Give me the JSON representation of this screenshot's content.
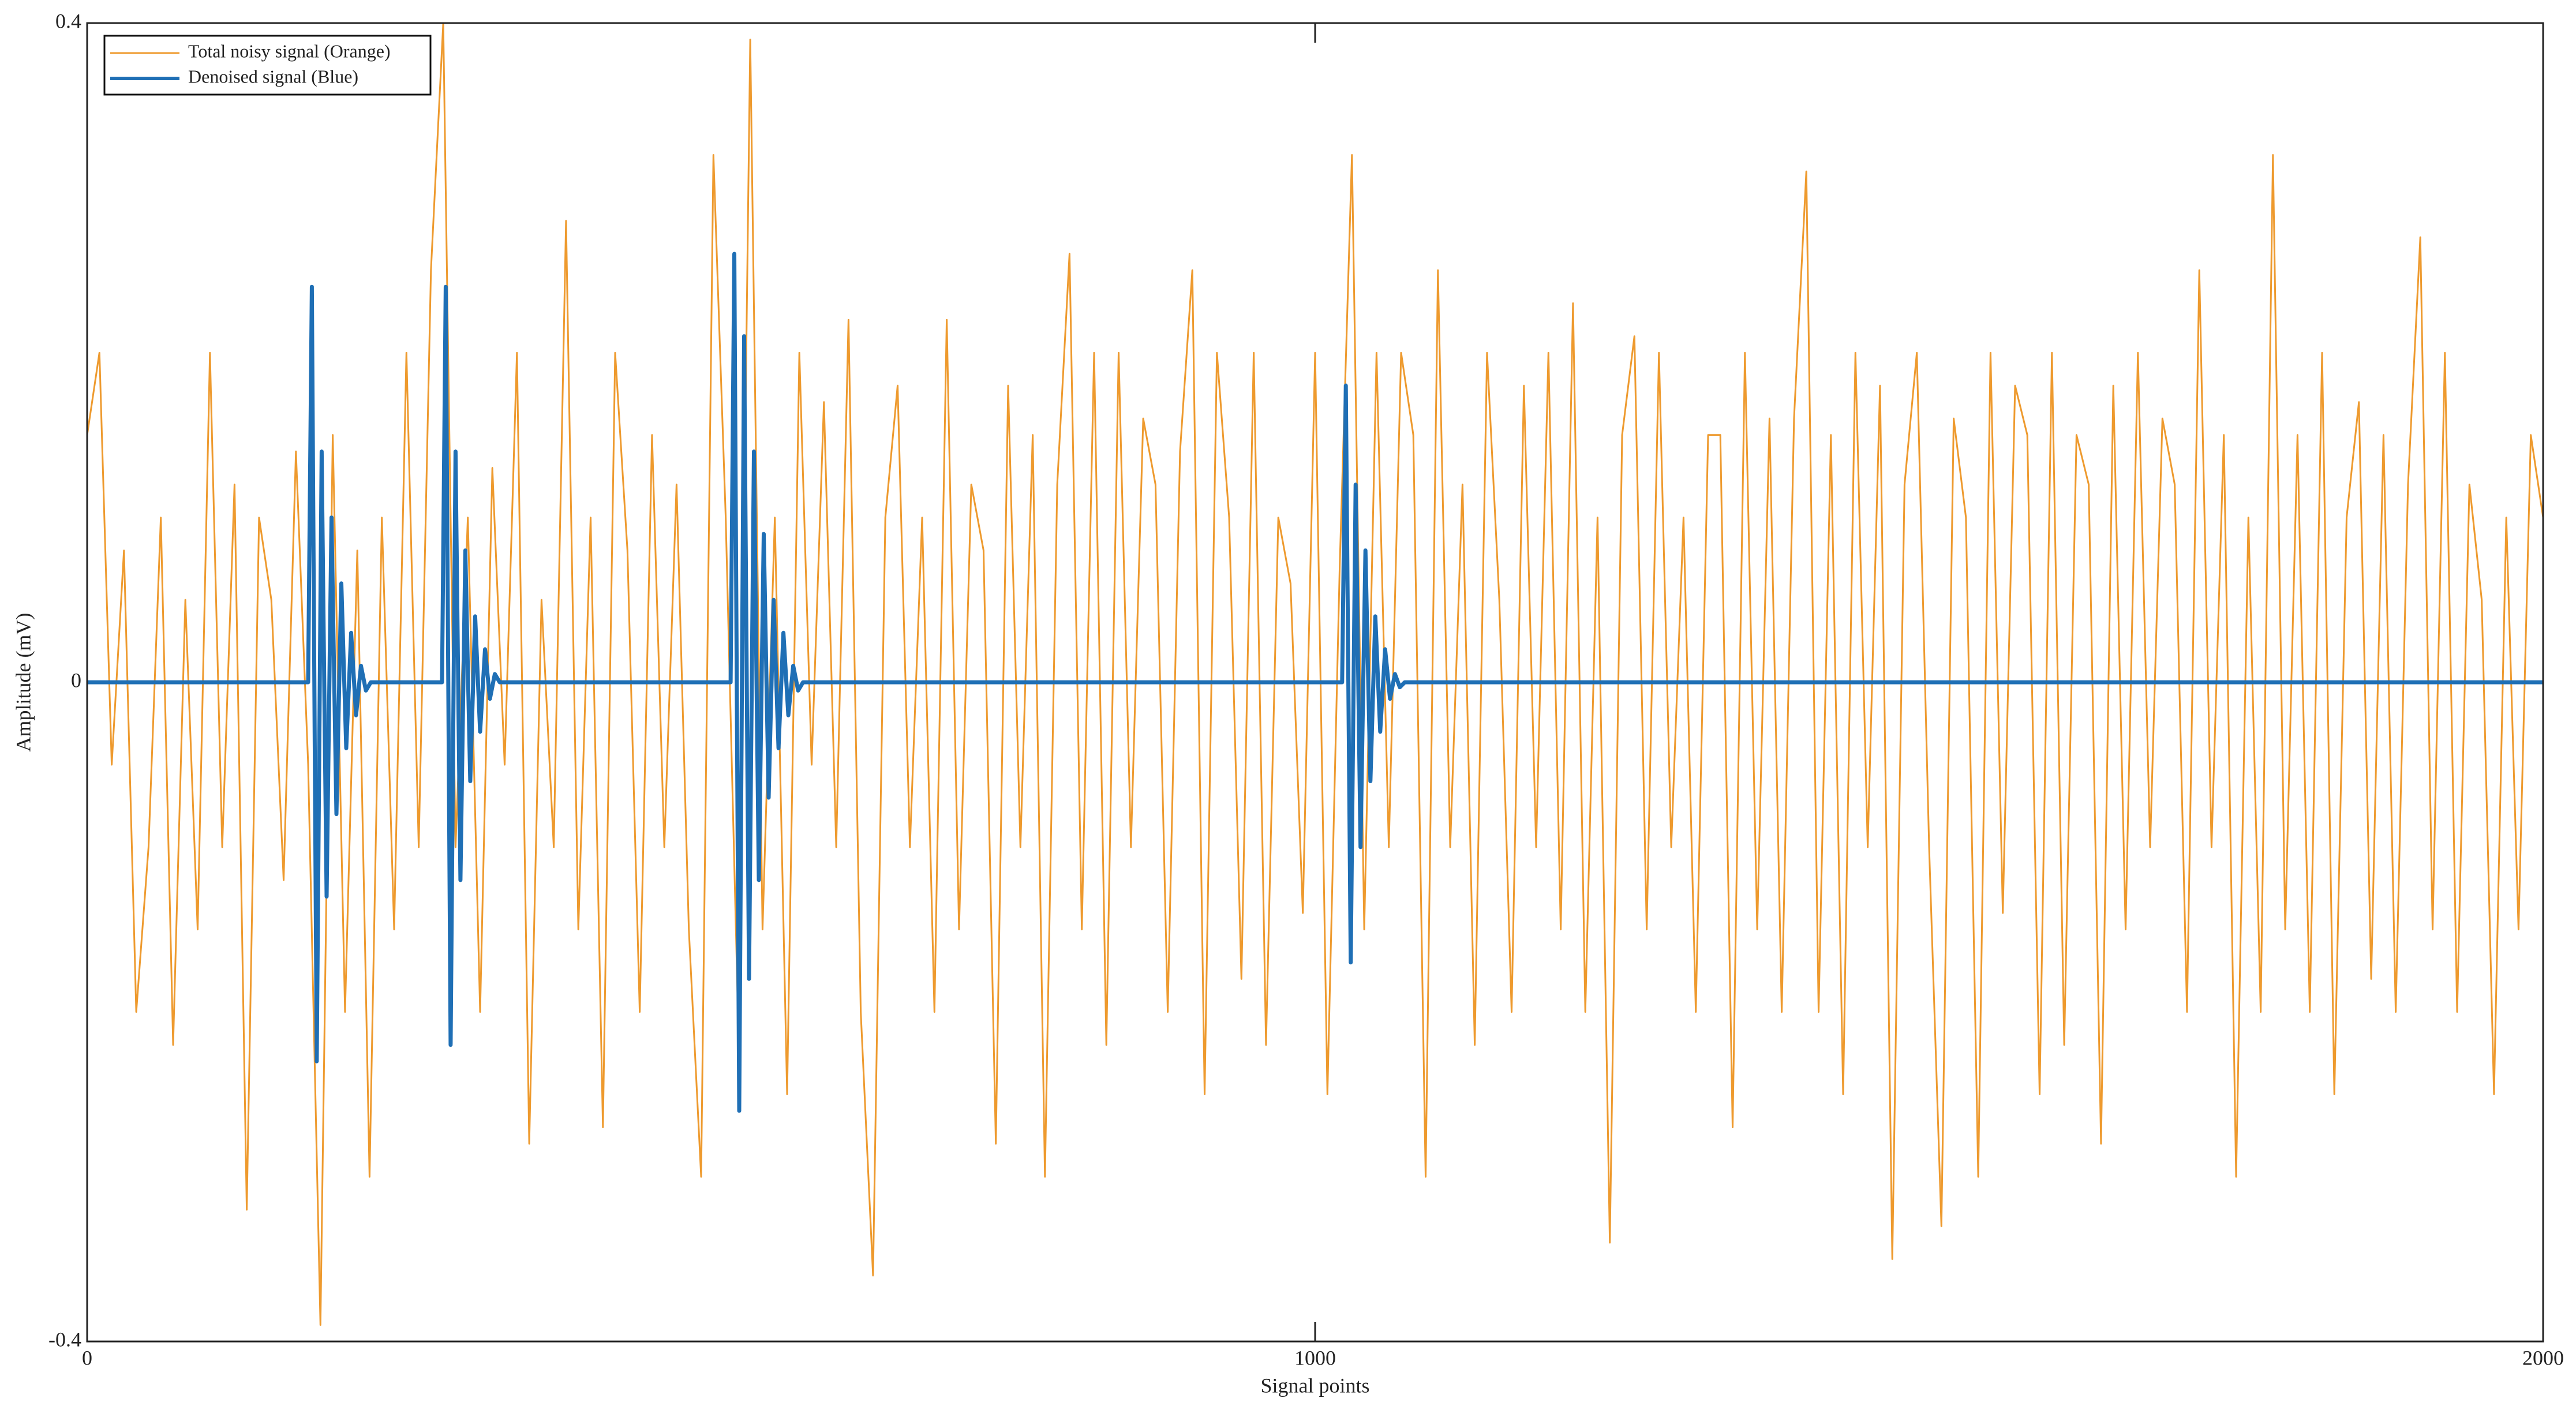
{
  "chart_data": {
    "type": "line",
    "xlabel": "Signal points",
    "ylabel": "Amplitude (mV)",
    "xlim": [
      0,
      2000
    ],
    "ylim": [
      -0.4,
      0.4
    ],
    "xticks": [
      0,
      1000,
      2000
    ],
    "yticks": [
      -0.4,
      0,
      0.4
    ],
    "legend": "upper left",
    "series": [
      {
        "name": "Total noisy signal (Orange)",
        "color": "#ee9a2e",
        "x": [
          0,
          10,
          20,
          30,
          40,
          50,
          60,
          70,
          80,
          90,
          100,
          110,
          120,
          130,
          140,
          150,
          160,
          170,
          180,
          190,
          200,
          210,
          220,
          230,
          240,
          250,
          260,
          270,
          280,
          290,
          300,
          310,
          320,
          330,
          340,
          350,
          360,
          370,
          380,
          390,
          400,
          410,
          420,
          430,
          440,
          450,
          460,
          470,
          480,
          490,
          500,
          510,
          520,
          530,
          540,
          550,
          560,
          570,
          580,
          590,
          600,
          610,
          620,
          630,
          640,
          650,
          660,
          670,
          680,
          690,
          700,
          710,
          720,
          730,
          740,
          750,
          760,
          770,
          780,
          790,
          800,
          810,
          820,
          830,
          840,
          850,
          860,
          870,
          880,
          890,
          900,
          910,
          920,
          930,
          940,
          950,
          960,
          970,
          980,
          990,
          1000,
          1010,
          1020,
          1030,
          1040,
          1050,
          1060,
          1070,
          1080,
          1090,
          1100,
          1110,
          1120,
          1130,
          1140,
          1150,
          1160,
          1170,
          1180,
          1190,
          1200,
          1210,
          1220,
          1230,
          1240,
          1250,
          1260,
          1270,
          1280,
          1290,
          1300,
          1310,
          1320,
          1330,
          1340,
          1350,
          1360,
          1370,
          1380,
          1390,
          1400,
          1410,
          1420,
          1430,
          1440,
          1450,
          1460,
          1470,
          1480,
          1490,
          1500,
          1510,
          1520,
          1530,
          1540,
          1550,
          1560,
          1570,
          1580,
          1590,
          1600,
          1610,
          1620,
          1630,
          1640,
          1650,
          1660,
          1670,
          1680,
          1690,
          1700,
          1710,
          1720,
          1730,
          1740,
          1750,
          1760,
          1770,
          1780,
          1790,
          1800,
          1810,
          1820,
          1830,
          1840,
          1850,
          1860,
          1870,
          1880,
          1890,
          1900,
          1910,
          1920,
          1930,
          1940,
          1950,
          1960,
          1970,
          1980,
          1990,
          2000
        ],
        "values": [
          0.15,
          0.2,
          -0.05,
          0.08,
          -0.2,
          -0.1,
          0.1,
          -0.22,
          0.05,
          -0.15,
          0.2,
          -0.1,
          0.12,
          -0.32,
          0.1,
          0.05,
          -0.12,
          0.14,
          -0.05,
          -0.39,
          0.15,
          -0.2,
          0.08,
          -0.3,
          0.1,
          -0.15,
          0.2,
          -0.1,
          0.25,
          0.4,
          -0.1,
          0.1,
          -0.2,
          0.13,
          -0.05,
          0.2,
          -0.28,
          0.05,
          -0.1,
          0.28,
          -0.15,
          0.1,
          -0.27,
          0.2,
          0.08,
          -0.2,
          0.15,
          -0.1,
          0.12,
          -0.15,
          -0.3,
          0.32,
          0.1,
          -0.2,
          0.39,
          -0.15,
          0.1,
          -0.25,
          0.2,
          -0.05,
          0.17,
          -0.1,
          0.22,
          -0.2,
          -0.36,
          0.1,
          0.18,
          -0.1,
          0.1,
          -0.2,
          0.22,
          -0.15,
          0.12,
          0.08,
          -0.28,
          0.18,
          -0.1,
          0.15,
          -0.3,
          0.12,
          0.26,
          -0.15,
          0.2,
          -0.22,
          0.2,
          -0.1,
          0.16,
          0.12,
          -0.2,
          0.14,
          0.25,
          -0.25,
          0.2,
          0.1,
          -0.18,
          0.2,
          -0.22,
          0.1,
          0.06,
          -0.14,
          0.2,
          -0.25,
          0.07,
          0.32,
          -0.15,
          0.2,
          -0.1,
          0.2,
          0.15,
          -0.3,
          0.25,
          -0.1,
          0.12,
          -0.22,
          0.2,
          0.05,
          -0.2,
          0.18,
          -0.1,
          0.2,
          -0.15,
          0.23,
          -0.2,
          0.1,
          -0.34,
          0.15,
          0.21,
          -0.15,
          0.2,
          -0.1,
          0.1,
          -0.2,
          0.15,
          0.15,
          -0.27,
          0.2,
          -0.15,
          0.16,
          -0.2,
          0.16,
          0.31,
          -0.2,
          0.15,
          -0.25,
          0.2,
          -0.1,
          0.18,
          -0.35,
          0.12,
          0.2,
          -0.1,
          -0.33,
          0.16,
          0.1,
          -0.3,
          0.2,
          -0.14,
          0.18,
          0.15,
          -0.25,
          0.2,
          -0.22,
          0.15,
          0.12,
          -0.28,
          0.18,
          -0.15,
          0.2,
          -0.1,
          0.16,
          0.12,
          -0.2,
          0.25,
          -0.1,
          0.15,
          -0.3,
          0.1,
          -0.2,
          0.32,
          -0.15,
          0.15,
          -0.2,
          0.2,
          -0.25,
          0.1,
          0.17,
          -0.18,
          0.15,
          -0.2,
          0.12,
          0.27,
          -0.15,
          0.2,
          -0.2,
          0.12,
          0.05,
          -0.25,
          0.1,
          -0.15,
          0.15,
          0.1
        ]
      },
      {
        "name": "Denoised signal (Blue)",
        "color": "#1f6fb5",
        "x": [
          0,
          180,
          183,
          187,
          191,
          195,
          199,
          203,
          207,
          211,
          215,
          219,
          223,
          227,
          231,
          289,
          292,
          296,
          300,
          304,
          308,
          312,
          316,
          320,
          324,
          328,
          332,
          336,
          524,
          527,
          531,
          535,
          539,
          543,
          547,
          551,
          555,
          559,
          563,
          567,
          571,
          575,
          579,
          583,
          600,
          1022,
          1025,
          1029,
          1033,
          1037,
          1041,
          1045,
          1049,
          1053,
          1057,
          1061,
          1065,
          1069,
          1073,
          1090,
          2000
        ],
        "values": [
          0,
          0,
          0.24,
          -0.23,
          0.14,
          -0.13,
          0.1,
          -0.08,
          0.06,
          -0.04,
          0.03,
          -0.02,
          0.01,
          -0.005,
          0,
          0,
          0.24,
          -0.22,
          0.14,
          -0.12,
          0.08,
          -0.06,
          0.04,
          -0.03,
          0.02,
          -0.01,
          0.005,
          0,
          0,
          0.26,
          -0.26,
          0.21,
          -0.18,
          0.14,
          -0.12,
          0.09,
          -0.07,
          0.05,
          -0.04,
          0.03,
          -0.02,
          0.01,
          -0.005,
          0,
          0,
          0,
          0.18,
          -0.17,
          0.12,
          -0.1,
          0.08,
          -0.06,
          0.04,
          -0.03,
          0.02,
          -0.01,
          0.005,
          -0.003,
          0,
          0,
          0
        ]
      }
    ]
  }
}
